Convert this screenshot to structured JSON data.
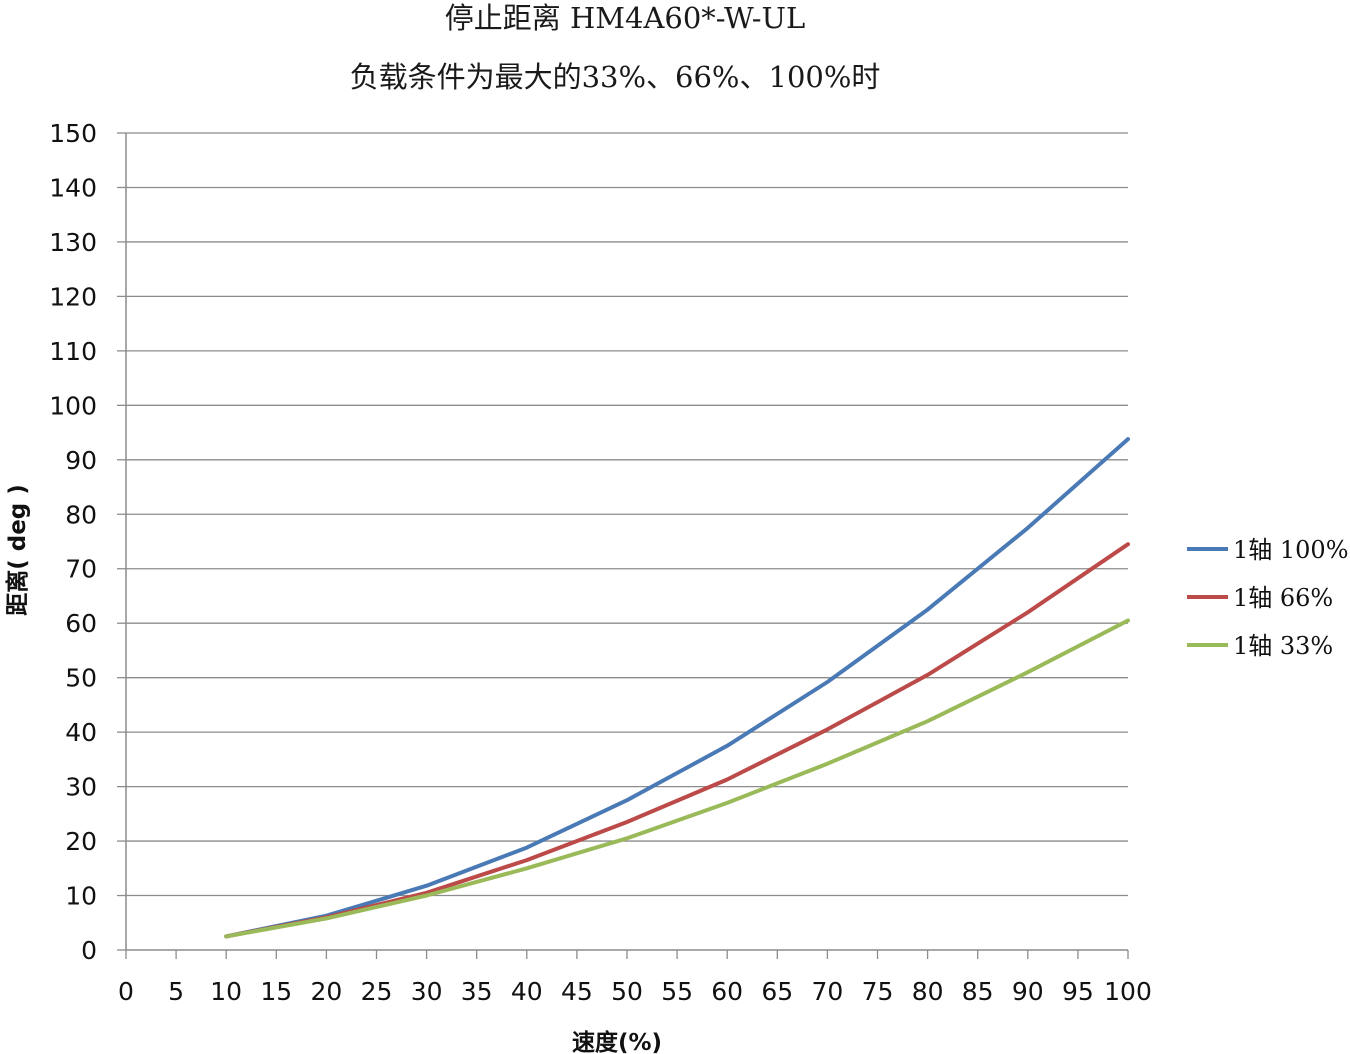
{
  "chart_data": {
    "type": "line",
    "title": "停止距离 HM4A60*-W-UL",
    "subtitle": "负载条件为最大的33%、66%、100%时",
    "xlabel": "速度(%)",
    "ylabel": "距离( deg )",
    "xlim": [
      0,
      100
    ],
    "ylim": [
      0,
      150
    ],
    "x_ticks": [
      "0",
      "5",
      "10",
      "15",
      "20",
      "25",
      "30",
      "35",
      "40",
      "45",
      "50",
      "55",
      "60",
      "65",
      "70",
      "75",
      "80",
      "85",
      "90",
      "95",
      "100"
    ],
    "y_ticks": [
      "0",
      "10",
      "20",
      "30",
      "40",
      "50",
      "60",
      "70",
      "80",
      "90",
      "100",
      "110",
      "120",
      "130",
      "140",
      "150"
    ],
    "grid": true,
    "legend_position": "right",
    "x": [
      10,
      20,
      30,
      40,
      50,
      60,
      70,
      80,
      90,
      100
    ],
    "series": [
      {
        "name": "1轴 100%",
        "color": "#4a7ab5",
        "values": [
          2.5,
          6.3,
          11.8,
          18.8,
          27.5,
          37.5,
          49.2,
          62.5,
          77.5,
          93.8
        ]
      },
      {
        "name": "1轴 66%",
        "color": "#bb4a48",
        "values": [
          2.5,
          6.0,
          10.5,
          16.5,
          23.5,
          31.3,
          40.5,
          50.5,
          62.0,
          74.5
        ]
      },
      {
        "name": "1轴 33%",
        "color": "#9aba59",
        "values": [
          2.5,
          5.8,
          10.0,
          15.0,
          20.5,
          27.0,
          34.2,
          42.0,
          51.0,
          60.5
        ]
      }
    ]
  }
}
